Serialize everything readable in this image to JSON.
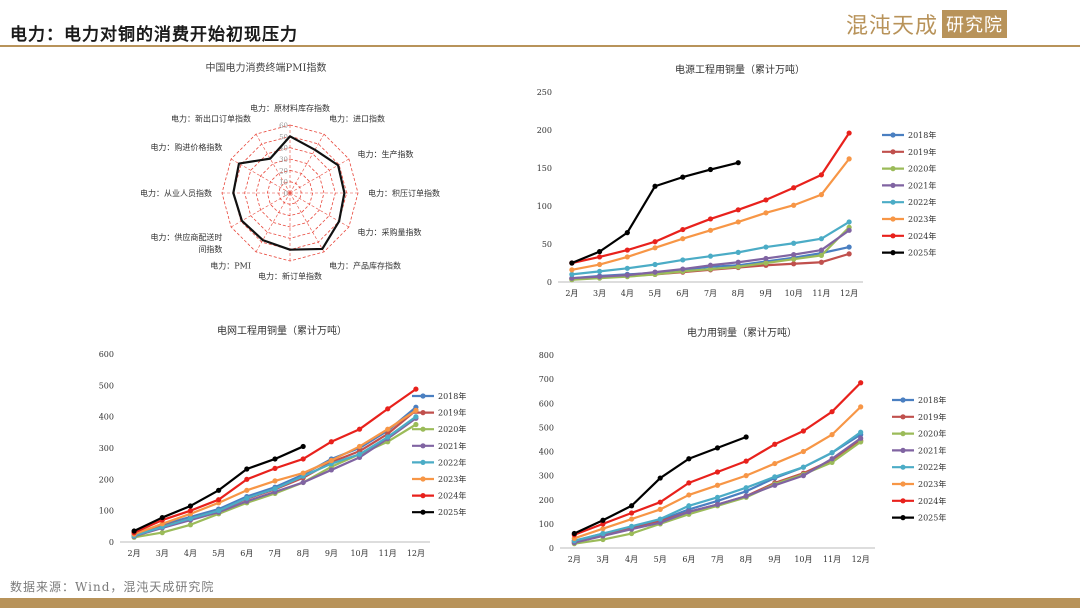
{
  "header": {
    "title": "电力：电力对铜的消费开始初现压力",
    "logo_text": "混沌天成",
    "logo_box_text": "研究院"
  },
  "footer": {
    "source": "数据来源：Wind，混沌天成研究院"
  },
  "colors": {
    "accent": "#b8935a",
    "radar_grid": "#e8463a",
    "radar_line": "#111111",
    "2018年": "#4a7fc1",
    "2019年": "#c0504d",
    "2020年": "#9bbb59",
    "2021年": "#8064a2",
    "2022年": "#4bacc6",
    "2023年": "#f79646",
    "2024年": "#e8211c",
    "2025年": "#000000"
  },
  "chart_data": [
    {
      "id": "radar",
      "type": "radar",
      "title": "中国电力消费终端PMI指数",
      "axes": [
        "电力：原材料库存指数",
        "电力：进口指数",
        "电力：生产指数",
        "电力：积压订单指数",
        "电力：采购量指数",
        "电力：产品库存指数",
        "电力：新订单指数",
        "电力：PMI",
        "电力：供应商配送时间指数",
        "电力：从业人员指数",
        "电力：购进价格指数",
        "电力：新出口订单指数"
      ],
      "ticks": [
        0,
        10,
        20,
        30,
        40,
        50,
        60
      ],
      "rlim": [
        0,
        60
      ],
      "values": [
        50,
        44,
        49,
        48,
        50,
        57,
        50,
        48,
        49,
        50,
        52,
        35
      ],
      "grid": true,
      "legend": "none"
    },
    {
      "id": "power-source",
      "type": "line",
      "title": "电源工程用铜量（累计万吨）",
      "categories": [
        "2月",
        "3月",
        "4月",
        "5月",
        "6月",
        "7月",
        "8月",
        "9月",
        "10月",
        "11月",
        "12月"
      ],
      "ylim": [
        0,
        250
      ],
      "yticks": [
        0,
        50,
        100,
        150,
        200,
        250
      ],
      "legend": "right",
      "series": [
        {
          "name": "2018年",
          "values": [
            5,
            8,
            10,
            12,
            16,
            20,
            22,
            27,
            32,
            38,
            46
          ]
        },
        {
          "name": "2019年",
          "values": [
            4,
            6,
            8,
            10,
            13,
            16,
            19,
            22,
            24,
            26,
            37
          ]
        },
        {
          "name": "2020年",
          "values": [
            3,
            5,
            7,
            10,
            14,
            17,
            20,
            25,
            30,
            35,
            72
          ]
        },
        {
          "name": "2021年",
          "values": [
            5,
            7,
            9,
            13,
            17,
            22,
            26,
            31,
            36,
            42,
            68
          ]
        },
        {
          "name": "2022年",
          "values": [
            10,
            14,
            18,
            23,
            29,
            34,
            39,
            46,
            51,
            57,
            79
          ]
        },
        {
          "name": "2023年",
          "values": [
            16,
            23,
            33,
            45,
            57,
            68,
            79,
            91,
            101,
            115,
            162
          ]
        },
        {
          "name": "2024年",
          "values": [
            25,
            33,
            42,
            53,
            69,
            83,
            95,
            108,
            124,
            141,
            196
          ]
        },
        {
          "name": "2025年",
          "values": [
            25,
            40,
            65,
            126,
            138,
            148,
            157,
            null,
            null,
            null,
            null
          ]
        }
      ]
    },
    {
      "id": "grid",
      "type": "line",
      "title": "电网工程用铜量（累计万吨）",
      "categories": [
        "2月",
        "3月",
        "4月",
        "5月",
        "6月",
        "7月",
        "8月",
        "9月",
        "10月",
        "11月",
        "12月"
      ],
      "ylim": [
        0,
        600
      ],
      "yticks": [
        0,
        100,
        200,
        300,
        400,
        500,
        600
      ],
      "legend": "right",
      "series": [
        {
          "name": "2018年",
          "values": [
            22,
            55,
            80,
            105,
            145,
            175,
            215,
            265,
            300,
            355,
            430
          ]
        },
        {
          "name": "2019年",
          "values": [
            20,
            50,
            75,
            100,
            138,
            168,
            205,
            255,
            290,
            345,
            420
          ]
        },
        {
          "name": "2020年",
          "values": [
            15,
            30,
            55,
            90,
            125,
            155,
            190,
            240,
            280,
            320,
            375
          ]
        },
        {
          "name": "2021年",
          "values": [
            18,
            45,
            70,
            95,
            130,
            160,
            190,
            230,
            270,
            330,
            395
          ]
        },
        {
          "name": "2022年",
          "values": [
            20,
            48,
            75,
            100,
            140,
            170,
            210,
            250,
            280,
            335,
            400
          ]
        },
        {
          "name": "2023年",
          "values": [
            25,
            58,
            90,
            125,
            165,
            195,
            220,
            260,
            305,
            360,
            420
          ]
        },
        {
          "name": "2024年",
          "values": [
            30,
            70,
            100,
            135,
            200,
            235,
            265,
            320,
            360,
            425,
            488
          ]
        },
        {
          "name": "2025年",
          "values": [
            35,
            78,
            115,
            165,
            233,
            265,
            305,
            null,
            null,
            null,
            null
          ]
        }
      ]
    },
    {
      "id": "power-total",
      "type": "line",
      "title": "电力用铜量（累计万吨）",
      "categories": [
        "2月",
        "3月",
        "4月",
        "5月",
        "6月",
        "7月",
        "8月",
        "9月",
        "10月",
        "11月",
        "12月"
      ],
      "ylim": [
        0,
        800
      ],
      "yticks": [
        0,
        100,
        200,
        300,
        400,
        500,
        600,
        700,
        800
      ],
      "legend": "right",
      "series": [
        {
          "name": "2018年",
          "values": [
            30,
            60,
            85,
            115,
            160,
            195,
            235,
            290,
            335,
            395,
            470
          ]
        },
        {
          "name": "2019年",
          "values": [
            25,
            55,
            80,
            110,
            150,
            180,
            215,
            270,
            310,
            365,
            445
          ]
        },
        {
          "name": "2020年",
          "values": [
            18,
            35,
            60,
            100,
            140,
            175,
            210,
            265,
            305,
            355,
            440
          ]
        },
        {
          "name": "2021年",
          "values": [
            22,
            50,
            78,
            105,
            150,
            180,
            215,
            260,
            300,
            370,
            455
          ]
        },
        {
          "name": "2022年",
          "values": [
            30,
            60,
            90,
            120,
            175,
            210,
            250,
            295,
            335,
            395,
            480
          ]
        },
        {
          "name": "2023年",
          "values": [
            40,
            80,
            120,
            160,
            220,
            260,
            300,
            350,
            400,
            470,
            585
          ]
        },
        {
          "name": "2024年",
          "values": [
            55,
            100,
            145,
            190,
            270,
            315,
            360,
            430,
            485,
            565,
            685
          ]
        },
        {
          "name": "2025年",
          "values": [
            60,
            115,
            175,
            290,
            370,
            415,
            460,
            null,
            null,
            null,
            null
          ]
        }
      ]
    }
  ]
}
